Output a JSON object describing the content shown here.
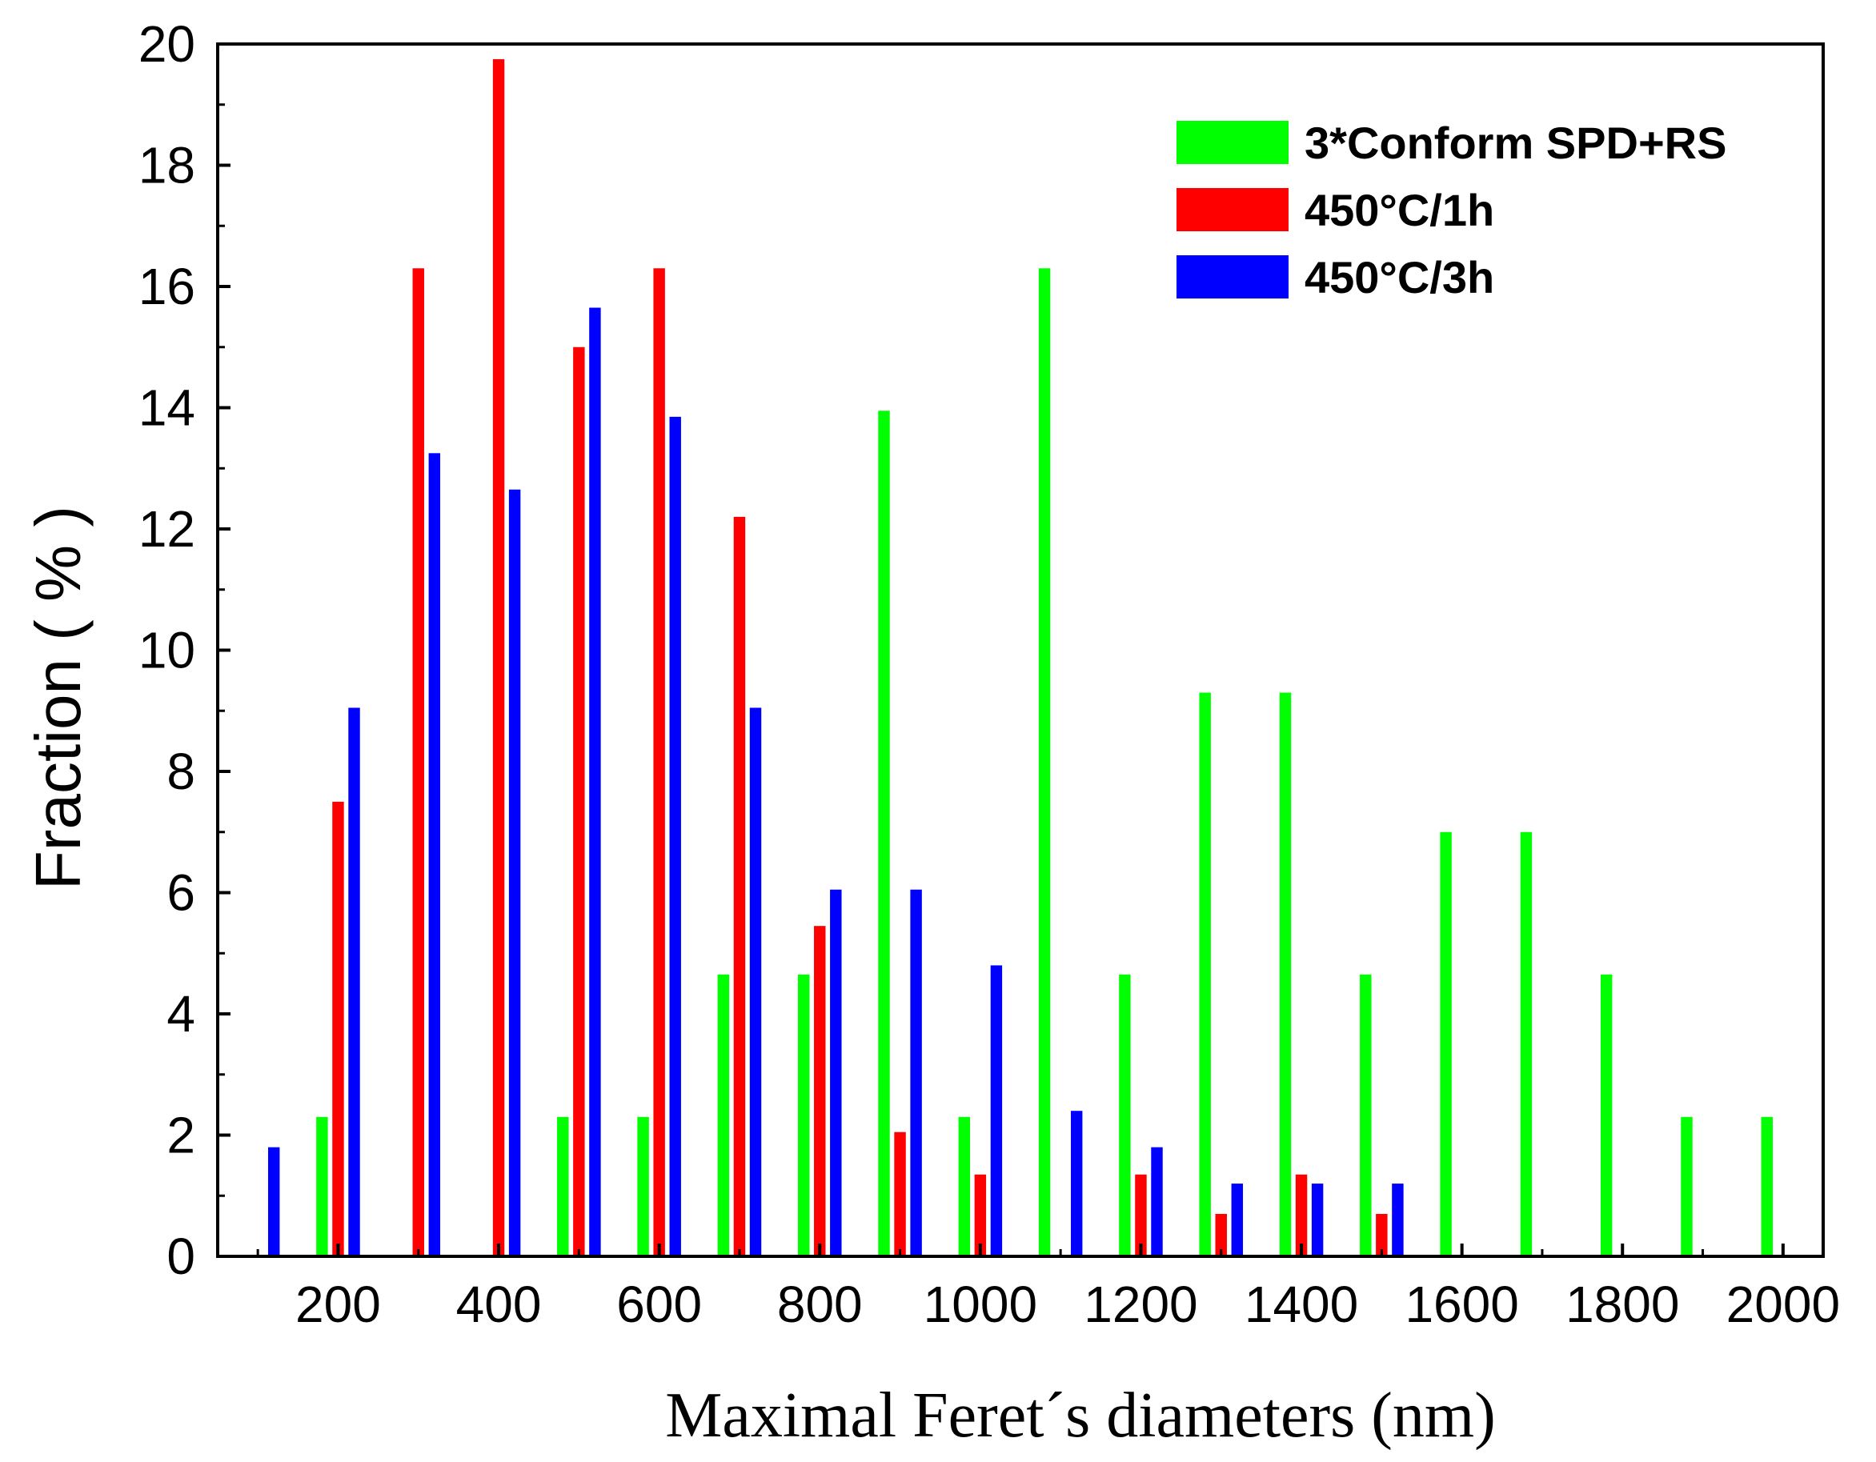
{
  "chart_data": {
    "type": "bar",
    "title": "",
    "xlabel": "Maximal Feret´s diameters (nm)",
    "ylabel": "Fraction ( % )",
    "xlim": [
      50,
      2050
    ],
    "ylim": [
      0,
      20
    ],
    "x_ticks": [
      200,
      400,
      600,
      800,
      1000,
      1200,
      1400,
      1600,
      1800,
      2000
    ],
    "y_ticks": [
      0,
      2,
      4,
      6,
      8,
      10,
      12,
      14,
      16,
      18,
      20
    ],
    "legend_position": "top-right",
    "grid": false,
    "series": [
      {
        "name": "3*Conform SPD+RS",
        "color": "#00ff00",
        "points": [
          {
            "x": 200,
            "y": 2.3
          },
          {
            "x": 500,
            "y": 2.3
          },
          {
            "x": 600,
            "y": 2.3
          },
          {
            "x": 700,
            "y": 4.65
          },
          {
            "x": 800,
            "y": 4.65
          },
          {
            "x": 900,
            "y": 13.95
          },
          {
            "x": 1000,
            "y": 2.3
          },
          {
            "x": 1100,
            "y": 16.3
          },
          {
            "x": 1200,
            "y": 4.65
          },
          {
            "x": 1300,
            "y": 9.3
          },
          {
            "x": 1400,
            "y": 9.3
          },
          {
            "x": 1500,
            "y": 4.65
          },
          {
            "x": 1600,
            "y": 7.0
          },
          {
            "x": 1700,
            "y": 7.0
          },
          {
            "x": 1800,
            "y": 4.65
          },
          {
            "x": 1900,
            "y": 2.3
          },
          {
            "x": 2000,
            "y": 2.3
          }
        ]
      },
      {
        "name": "450°C/1h",
        "color": "#ff0000",
        "points": [
          {
            "x": 200,
            "y": 7.5
          },
          {
            "x": 300,
            "y": 16.3
          },
          {
            "x": 400,
            "y": 19.75
          },
          {
            "x": 500,
            "y": 15.0
          },
          {
            "x": 600,
            "y": 16.3
          },
          {
            "x": 700,
            "y": 12.2
          },
          {
            "x": 800,
            "y": 5.45
          },
          {
            "x": 900,
            "y": 2.05
          },
          {
            "x": 1000,
            "y": 1.35
          },
          {
            "x": 1200,
            "y": 1.35
          },
          {
            "x": 1300,
            "y": 0.7
          },
          {
            "x": 1400,
            "y": 1.35
          },
          {
            "x": 1500,
            "y": 0.7
          }
        ]
      },
      {
        "name": "450°C/3h",
        "color": "#0000ff",
        "points": [
          {
            "x": 100,
            "y": 1.8
          },
          {
            "x": 200,
            "y": 9.05
          },
          {
            "x": 300,
            "y": 13.25
          },
          {
            "x": 400,
            "y": 12.65
          },
          {
            "x": 500,
            "y": 15.65
          },
          {
            "x": 600,
            "y": 13.85
          },
          {
            "x": 700,
            "y": 9.05
          },
          {
            "x": 800,
            "y": 6.05
          },
          {
            "x": 900,
            "y": 6.05
          },
          {
            "x": 1000,
            "y": 4.8
          },
          {
            "x": 1100,
            "y": 2.4
          },
          {
            "x": 1200,
            "y": 1.8
          },
          {
            "x": 1300,
            "y": 1.2
          },
          {
            "x": 1400,
            "y": 1.2
          },
          {
            "x": 1500,
            "y": 1.2
          }
        ]
      }
    ]
  }
}
